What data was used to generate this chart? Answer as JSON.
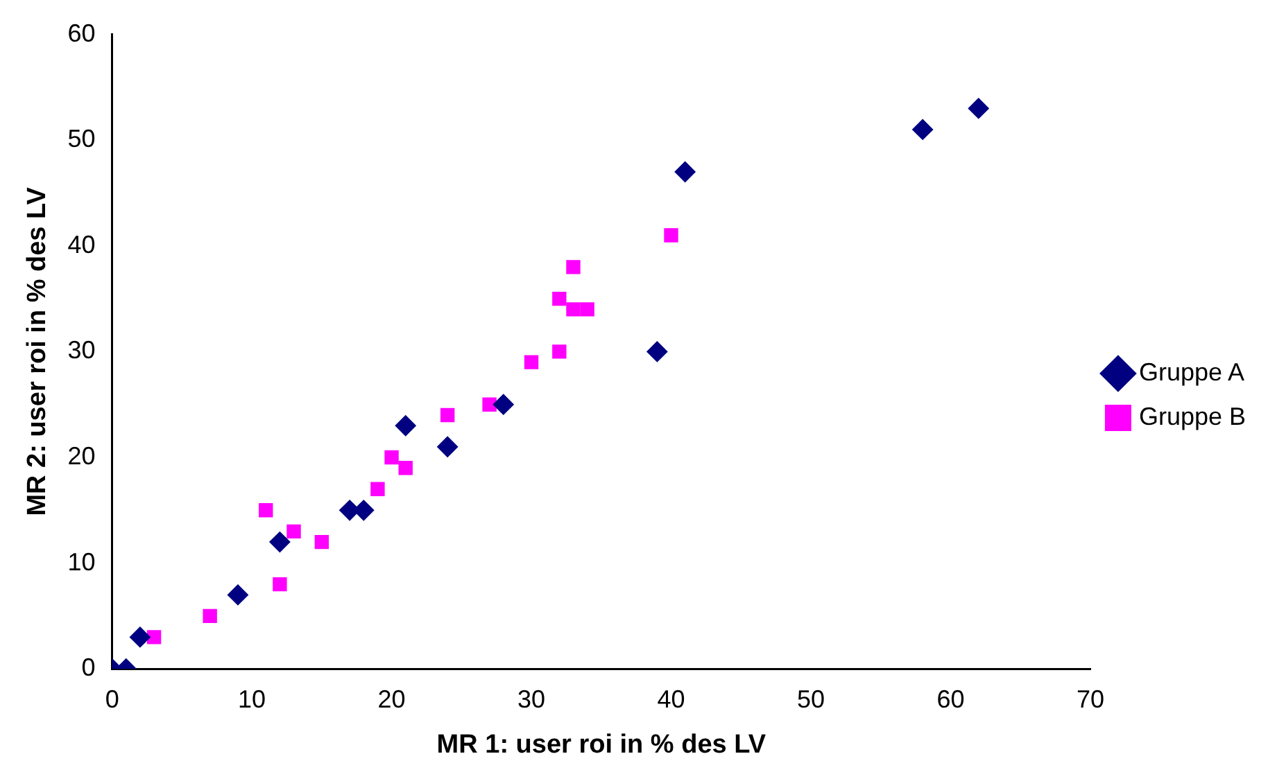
{
  "chart_data": {
    "type": "scatter",
    "xlabel": "MR 1: user roi in % des LV",
    "ylabel": "MR 2: user roi in % des LV",
    "xlim": [
      0,
      70
    ],
    "xticks": [
      0,
      10,
      20,
      30,
      40,
      50,
      60,
      70
    ],
    "ylim": [
      0,
      60
    ],
    "yticks": [
      0,
      10,
      20,
      30,
      40,
      50,
      60
    ],
    "grid": false,
    "legend": "right",
    "series": [
      {
        "name": "Gruppe A",
        "color": "#000080",
        "marker": "diamond",
        "x": [
          0,
          1,
          2,
          9,
          12,
          17,
          18,
          21,
          24,
          28,
          39,
          41,
          58,
          62
        ],
        "values": [
          0,
          0,
          3,
          7,
          12,
          15,
          15,
          23,
          21,
          25,
          30,
          47,
          51,
          53
        ]
      },
      {
        "name": "Gruppe B",
        "color": "#ff00ff",
        "marker": "square",
        "x": [
          3,
          7,
          11,
          12,
          13,
          15,
          19,
          20,
          21,
          24,
          27,
          30,
          32,
          32,
          33,
          33,
          34,
          40
        ],
        "values": [
          3,
          5,
          15,
          8,
          13,
          12,
          17,
          20,
          19,
          24,
          25,
          29,
          30,
          35,
          38,
          34,
          34,
          41
        ]
      }
    ]
  }
}
